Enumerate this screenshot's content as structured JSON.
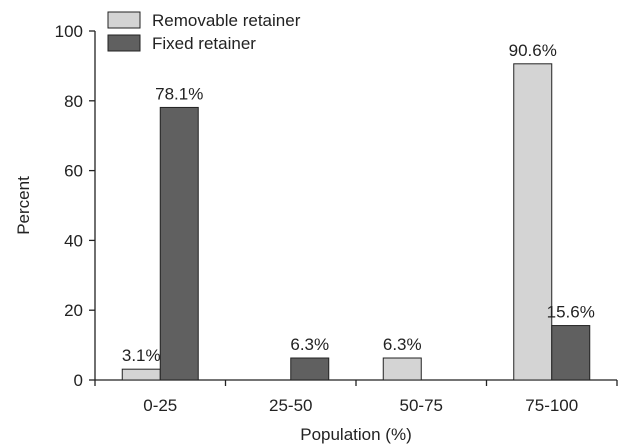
{
  "chart_data": {
    "type": "bar",
    "categories": [
      "0-25",
      "25-50",
      "50-75",
      "75-100"
    ],
    "series": [
      {
        "name": "Removable retainer",
        "values": [
          3.1,
          0,
          6.3,
          90.6
        ],
        "labels": [
          "3.1%",
          "",
          "6.3%",
          "90.6%"
        ],
        "color": "#d4d4d4"
      },
      {
        "name": "Fixed retainer",
        "values": [
          78.1,
          6.3,
          0,
          15.6
        ],
        "labels": [
          "78.1%",
          "6.3%",
          "",
          "15.6%"
        ],
        "color": "#606060"
      }
    ],
    "xlabel": "Population (%)",
    "ylabel": "Percent",
    "ylim": [
      0,
      100
    ],
    "yticks": [
      0,
      20,
      40,
      60,
      80,
      100
    ],
    "grid": false,
    "legend_position": "top-left"
  }
}
